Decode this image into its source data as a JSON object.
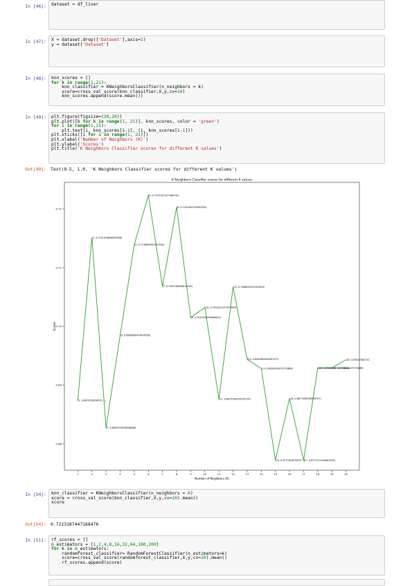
{
  "cells": [
    {
      "prompt": "In [46]:",
      "code": [
        [
          [
            "dataset = df_liver",
            "t"
          ]
        ]
      ]
    },
    {
      "prompt": "In [47]:",
      "code": [
        [
          [
            "X = dataset.drop([",
            "t"
          ],
          [
            "'Dataset'",
            "s"
          ],
          [
            "],axis=",
            "t"
          ],
          [
            "1",
            "n"
          ],
          [
            ")",
            "t"
          ]
        ],
        [
          [
            "y = dataset[",
            "t"
          ],
          [
            "'Dataset'",
            "s"
          ],
          [
            "]",
            "t"
          ]
        ]
      ]
    },
    {
      "prompt": "In [48]:",
      "code": [
        [
          [
            "knn_scores = []",
            "t"
          ]
        ],
        [
          [
            "for",
            "k"
          ],
          [
            " k ",
            "t"
          ],
          [
            "in",
            "k"
          ],
          [
            " ",
            "t"
          ],
          [
            "range",
            "k"
          ],
          [
            "(",
            "t"
          ],
          [
            "1",
            "n"
          ],
          [
            ",",
            "t"
          ],
          [
            "21",
            "n"
          ],
          [
            "):",
            "t"
          ]
        ],
        [
          [
            "    knn_classifier = KNeighborsClassifier(n_neighbors = k)",
            "t"
          ]
        ],
        [
          [
            "    score=cross_val_score(knn_classifier,X,y,cv=",
            "t"
          ],
          [
            "10",
            "n"
          ],
          [
            ")",
            "t"
          ]
        ],
        [
          [
            "    knn_scores.append(score.mean())",
            "t"
          ]
        ]
      ]
    },
    {
      "prompt": "In [49]:",
      "code": [
        [
          [
            "plt.figure(figsize=(",
            "t"
          ],
          [
            "20",
            "n"
          ],
          [
            ",",
            "t"
          ],
          [
            "20",
            "n"
          ],
          [
            "))",
            "t"
          ]
        ],
        [
          [
            "plt.plot([k ",
            "t"
          ],
          [
            "for",
            "k"
          ],
          [
            " k ",
            "t"
          ],
          [
            "in",
            "k"
          ],
          [
            " ",
            "t"
          ],
          [
            "range",
            "k"
          ],
          [
            "(",
            "t"
          ],
          [
            "1",
            "n"
          ],
          [
            ", ",
            "t"
          ],
          [
            "21",
            "n"
          ],
          [
            ")], knn_scores, color = ",
            "t"
          ],
          [
            "'green'",
            "s"
          ],
          [
            ")",
            "t"
          ]
        ],
        [
          [
            "for",
            "k"
          ],
          [
            " i ",
            "t"
          ],
          [
            "in",
            "k"
          ],
          [
            " ",
            "t"
          ],
          [
            "range",
            "k"
          ],
          [
            "(",
            "t"
          ],
          [
            "1",
            "n"
          ],
          [
            ",",
            "t"
          ],
          [
            "21",
            "n"
          ],
          [
            "):",
            "t"
          ]
        ],
        [
          [
            "    plt.text(i, knn_scores[i-",
            "t"
          ],
          [
            "1",
            "n"
          ],
          [
            "], (i, knn_scores[i-",
            "t"
          ],
          [
            "1",
            "n"
          ],
          [
            "]))",
            "t"
          ]
        ],
        [
          [
            "plt.xticks([i ",
            "t"
          ],
          [
            "for",
            "k"
          ],
          [
            " i ",
            "t"
          ],
          [
            "in",
            "k"
          ],
          [
            " ",
            "t"
          ],
          [
            "range",
            "k"
          ],
          [
            "(",
            "t"
          ],
          [
            "1",
            "n"
          ],
          [
            ", ",
            "t"
          ],
          [
            "21",
            "n"
          ],
          [
            ")])",
            "t"
          ]
        ],
        [
          [
            "plt.xlabel(",
            "t"
          ],
          [
            "'Number of Neighbors (K)'",
            "s"
          ],
          [
            ")",
            "t"
          ]
        ],
        [
          [
            "plt.ylabel(",
            "t"
          ],
          [
            "'Scores'",
            "s"
          ],
          [
            ")",
            "t"
          ]
        ],
        [
          [
            "plt.title(",
            "t"
          ],
          [
            "'K Neighbors Classifier scores for different K values'",
            "s"
          ],
          [
            ")",
            "t"
          ]
        ]
      ]
    },
    {
      "prompt": "In [54]:",
      "code": [
        [
          [
            "knn_classifier = KNeighborsClassifier(n_neighbors = ",
            "t"
          ],
          [
            "6",
            "n"
          ],
          [
            ")",
            "t"
          ]
        ],
        [
          [
            "score = cross_val_score(knn_classifier,X,y,cv=",
            "t"
          ],
          [
            "10",
            "n"
          ],
          [
            ").mean()",
            "t"
          ]
        ],
        [
          [
            "score",
            "t"
          ]
        ]
      ]
    },
    {
      "prompt": "In [51]:",
      "code": [
        [
          [
            "rf_scores = []",
            "t"
          ]
        ],
        [
          [
            "n_estimators = [",
            "t"
          ],
          [
            "1",
            "n"
          ],
          [
            ",",
            "t"
          ],
          [
            "2",
            "n"
          ],
          [
            ",",
            "t"
          ],
          [
            "4",
            "n"
          ],
          [
            ",",
            "t"
          ],
          [
            "8",
            "n"
          ],
          [
            ",",
            "t"
          ],
          [
            "16",
            "n"
          ],
          [
            ",",
            "t"
          ],
          [
            "32",
            "n"
          ],
          [
            ",",
            "t"
          ],
          [
            "64",
            "n"
          ],
          [
            ",",
            "t"
          ],
          [
            "100",
            "n"
          ],
          [
            ",",
            "t"
          ],
          [
            "200",
            "n"
          ],
          [
            "]",
            "t"
          ]
        ],
        [
          [
            "for",
            "k"
          ],
          [
            " k ",
            "t"
          ],
          [
            "in",
            "k"
          ],
          [
            " n_estimators:",
            "t"
          ]
        ],
        [
          [
            "    randomforest_classifier= RandomForestClassifier(n_estimators=k)",
            "t"
          ]
        ],
        [
          [
            "    score=cross_val_score(randomforest_classifier,X,y,cv=",
            "t"
          ],
          [
            "10",
            "n"
          ],
          [
            ").mean()",
            "t"
          ]
        ],
        [
          [
            "    rf_scores.append(score)",
            "t"
          ]
        ]
      ]
    }
  ],
  "outputs": {
    "out49": {
      "prompt": "Out[49]:",
      "text": "Text(0.5, 1.0, 'K Neighbors Classifier scores for different K values')"
    },
    "out54": {
      "prompt": "Out[54]:",
      "text": "0.7223187447168476"
    }
  },
  "colors": {
    "prompt_in": "#303f9f",
    "prompt_out": "#d84315",
    "line": "#2ca02c",
    "keyword": "#008000",
    "string": "#ba2121"
  },
  "chart_data": {
    "type": "line",
    "title": "K Neighbors Classifier scores for different K values",
    "xlabel": "Number of Neighbors (K)",
    "ylabel": "Scores",
    "x": [
      1,
      2,
      3,
      4,
      5,
      6,
      7,
      8,
      9,
      10,
      11,
      12,
      13,
      14,
      15,
      16,
      17,
      18,
      19,
      20
    ],
    "values": [
      0.6874,
      0.7151,
      0.6827,
      0.6985,
      0.7139,
      0.7223,
      0.7068,
      0.7203,
      0.7015,
      0.7032,
      0.6876,
      0.7067,
      0.6944,
      0.6928,
      0.6772,
      0.6877,
      0.6772,
      0.6929,
      0.6929,
      0.6943
    ],
    "point_labels": [
      "(1, 0.6874296348707...)",
      "(2, 0.7151419606878096)",
      "(3, 0.6826724906948846)",
      "(4, 0.6984669474614508)",
      "(5, 0.7138659304117834)",
      "(6, 0.7223187447168476)",
      "(7, 0.7067289958614593)",
      "(8, 0.7203184759092354)",
      "(9, 0.7014959959806003)",
      "(10, 0.7031022157873604)",
      "(11, 0.6875788243255714)",
      "(12, 0.7066594351307843)",
      "(13, 0.6944482040587073)",
      "(14, 0.6928430075773888)",
      "(15, 0.6772016979597...)",
      "(16, 0.6877296398378797)",
      "(17, 0.6772315394602520)",
      "(18, 0.6928430075773888)",
      "(19, 0.6928430075773888)",
      "(20, 0.6942708273121289)"
    ],
    "yticks": [
      0.68,
      0.69,
      0.7,
      0.71,
      0.72
    ],
    "ylim": [
      0.6755,
      0.7245
    ],
    "grid": false
  }
}
